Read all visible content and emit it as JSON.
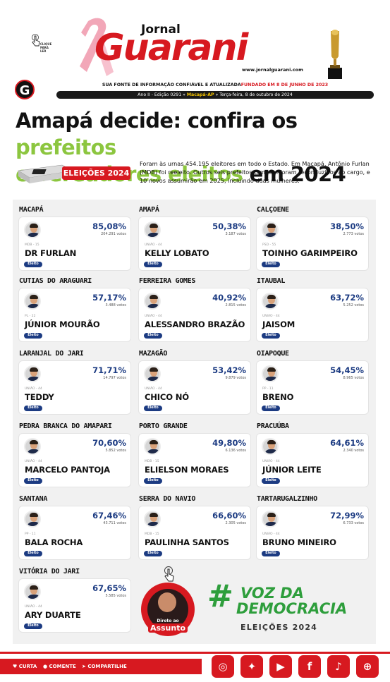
{
  "header": {
    "jornal": "Jornal",
    "guarani": "Guarani",
    "url": "www.jornalguarani.com",
    "click_label": "CLIQUE PARA LER",
    "badge": "G",
    "strap_left": "SUA FONTE DE INFORMAÇÃO CONFIÁVEL E ATUALIZADA",
    "strap_right": "FUNDADO EM 8 DE JUNHO DE 2023",
    "edition_left": "Ano II - Edição 0291 »",
    "edition_city": "Macapá-AP",
    "edition_right": "» Terça-feira, 8 de outubro de 2024"
  },
  "headline": {
    "part1": "Amapá decide: confira os ",
    "part2": "prefeitos",
    "part3": "e vereadores eleitos",
    "part4": " em 2024"
  },
  "tag": "ELEIÇÕES 2024",
  "lead": "Foram às urnas 454.195 eleitores em todo o Estado. Em Macapá, Antônio Furlan (MDB) foi reeleito. Outros seis prefeitos também foram reconduzidos ao cargo, e 10 novos assumirão em 2025, incluindo duas mulheres.",
  "elected_label": "Eleito",
  "results": [
    {
      "city": "MACAPÁ",
      "pct": "85,08%",
      "votes": "204.291 votos",
      "party": "MDB - 15",
      "name": "DR FURLAN"
    },
    {
      "city": "AMAPÁ",
      "pct": "50,38%",
      "votes": "3.187 votos",
      "party": "UNIÃO - 44",
      "name": "KELLY LOBATO"
    },
    {
      "city": "CALÇOENE",
      "pct": "38,50%",
      "votes": "2.773 votos",
      "party": "PSD - 55",
      "name": "TOINHO GARIMPEIRO"
    },
    {
      "city": "CUTIAS DO ARAGUARI",
      "pct": "57,17%",
      "votes": "3.488 votos",
      "party": "PL - 22",
      "name": "JÚNIOR MOURÃO"
    },
    {
      "city": "FERREIRA GOMES",
      "pct": "40,92%",
      "votes": "2.815 votos",
      "party": "UNIÃO - 44",
      "name": "ALESSANDRO BRAZÃO"
    },
    {
      "city": "ITAUBAL",
      "pct": "63,72%",
      "votes": "5.252 votos",
      "party": "UNIÃO - 44",
      "name": "JAISOM"
    },
    {
      "city": "LARANJAL DO JARI",
      "pct": "71,71%",
      "votes": "14.797 votos",
      "party": "UNIÃO - 44",
      "name": "TEDDY"
    },
    {
      "city": "MAZAGÃO",
      "pct": "53,42%",
      "votes": "9.879 votos",
      "party": "UNIÃO - 44",
      "name": "CHICO NÓ"
    },
    {
      "city": "OIAPOQUE",
      "pct": "54,45%",
      "votes": "8.965 votos",
      "party": "PP - 11",
      "name": "BRENO"
    },
    {
      "city": "PEDRA BRANCA DO AMAPARI",
      "pct": "70,60%",
      "votes": "5.852 votos",
      "party": "UNIÃO - 44",
      "name": "MARCELO PANTOJA"
    },
    {
      "city": "PORTO GRANDE",
      "pct": "49,80%",
      "votes": "6.136 votos",
      "party": "MDB - 15",
      "name": "ELIELSON MORAES"
    },
    {
      "city": "PRACUÚBA",
      "pct": "64,61%",
      "votes": "2.340 votos",
      "party": "UNIÃO - 44",
      "name": "JÚNIOR LEITE"
    },
    {
      "city": "SANTANA",
      "pct": "67,46%",
      "votes": "43.711 votos",
      "party": "PP - 11",
      "name": "BALA ROCHA"
    },
    {
      "city": "SERRA DO NAVIO",
      "pct": "66,60%",
      "votes": "2.305 votos",
      "party": "MDB - 15",
      "name": "PAULINHA SANTOS"
    },
    {
      "city": "TARTARUGALZINHO",
      "pct": "72,99%",
      "votes": "6.733 votos",
      "party": "UNIÃO - 44",
      "name": "BRUNO MINEIRO"
    },
    {
      "city": "VITÓRIA DO JARI",
      "pct": "67,65%",
      "votes": "5.585 votos",
      "party": "UNIÃO - 44",
      "name": "ARY DUARTE"
    }
  ],
  "direto": {
    "line1": "Direto ao",
    "line2": "Assunto"
  },
  "voz": {
    "hash": "#",
    "line1": "VOZ DA",
    "line2": "DEMOCRACIA",
    "line3": "ELEIÇÕES 2024"
  },
  "footer": {
    "curta": "CURTA",
    "comente": "COMENTE",
    "compartilhe": "COMPARTILHE",
    "socials": [
      "instagram-icon",
      "twitter-icon",
      "youtube-icon",
      "facebook-icon",
      "tiktok-icon",
      "globe-icon"
    ]
  },
  "colors": {
    "red": "#d71920",
    "green": "#8cc63f",
    "blue": "#1c3b82"
  }
}
